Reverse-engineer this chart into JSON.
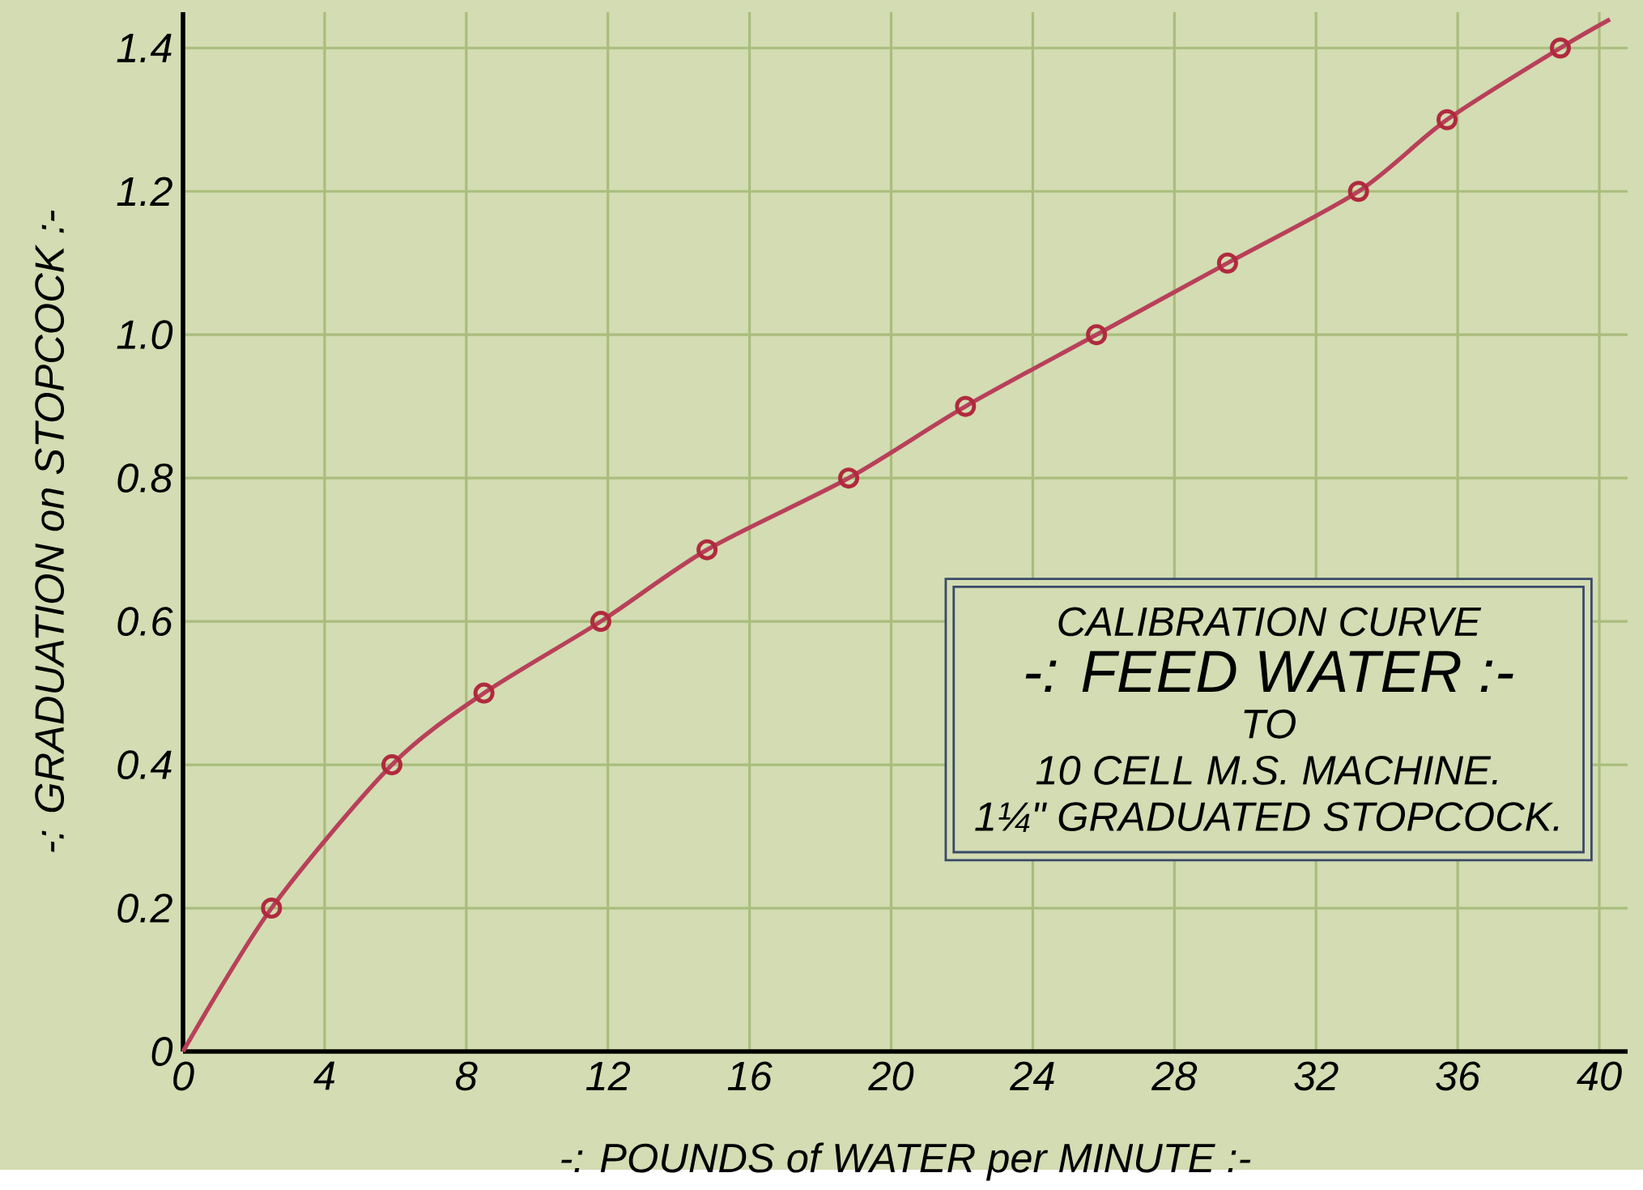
{
  "chart_data": {
    "type": "scatter",
    "xlabel": "-: POUNDS of WATER per MINUTE :-",
    "ylabel": "-: GRADUATION on STOPCOCK :-",
    "title": "CALIBRATION CURVE",
    "subtitle": "-: FEED WATER :-",
    "annotations": [
      "TO",
      "10 CELL M.S. MACHINE.",
      "1¼\" GRADUATED STOPCOCK."
    ],
    "series": [
      {
        "color": "#b02a3e",
        "marker": "circle",
        "x": [
          2.5,
          5.9,
          8.5,
          11.8,
          14.8,
          18.8,
          22.1,
          25.8,
          29.5,
          33.2,
          35.7,
          38.9
        ],
        "values": [
          0.2,
          0.4,
          0.5,
          0.6,
          0.7,
          0.8,
          0.9,
          1.0,
          1.1,
          1.2,
          1.3,
          1.4
        ]
      },
      {
        "type": "line",
        "color": "#b8405a",
        "x": [
          0,
          2.5,
          5.9,
          8.5,
          11.8,
          14.8,
          18.8,
          22.1,
          25.8,
          29.5,
          33.2,
          35.7,
          38.9,
          40.3
        ],
        "values": [
          0,
          0.2,
          0.4,
          0.5,
          0.6,
          0.7,
          0.8,
          0.9,
          1.0,
          1.1,
          1.2,
          1.3,
          1.4,
          1.44
        ]
      }
    ],
    "xlim": [
      0,
      40.8
    ],
    "ylim": [
      0,
      1.45
    ],
    "xticks": [
      0,
      4,
      8,
      12,
      16,
      20,
      24,
      28,
      32,
      36,
      40
    ],
    "yticks": [
      0,
      0.2,
      0.4,
      0.6,
      0.8,
      {
        "value": 1.0,
        "label": "1.0"
      },
      1.2,
      1.4
    ],
    "grid": true
  }
}
